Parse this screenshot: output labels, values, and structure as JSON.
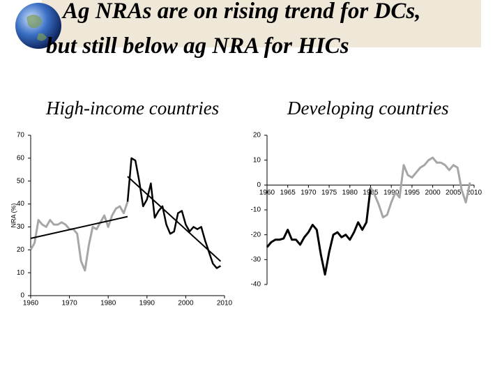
{
  "title_lines": [
    "Ag NRAs are on rising trend for DCs,",
    "but still below ag NRA for HICs"
  ],
  "chart_data": [
    {
      "type": "line",
      "title": "High-income countries",
      "ylabel": "NRA (%)",
      "xlim": [
        1960,
        2010
      ],
      "xticks": [
        1960,
        1970,
        1980,
        1990,
        2000,
        2010
      ],
      "ylim": [
        0,
        70
      ],
      "yticks": [
        0,
        10,
        20,
        30,
        40,
        50,
        60,
        70
      ],
      "x_axis_position": "bottom",
      "series": [
        {
          "color": "#a6a6a6",
          "width": 3,
          "x": [
            1960,
            1961,
            1962,
            1963,
            1964,
            1965,
            1966,
            1967,
            1968,
            1969,
            1970,
            1971,
            1972,
            1973,
            1974,
            1975,
            1976,
            1977,
            1978,
            1979,
            1980,
            1981,
            1982,
            1983,
            1984,
            1985
          ],
          "values": [
            20,
            23,
            33,
            31,
            30,
            33,
            31,
            31,
            32,
            31,
            29,
            29,
            27,
            15,
            11,
            22,
            30,
            29,
            32,
            35,
            30,
            35,
            38,
            39,
            36,
            41
          ]
        },
        {
          "color": "#000000",
          "width": 2.5,
          "x": [
            1985,
            1986,
            1987,
            1988,
            1989,
            1990,
            1991,
            1992,
            1993,
            1994,
            1995,
            1996,
            1997,
            1998,
            1999,
            2000,
            2001,
            2002,
            2003,
            2004,
            2005,
            2006,
            2007,
            2008,
            2009
          ],
          "values": [
            41,
            60,
            59,
            50,
            39,
            42,
            49,
            34,
            37,
            39,
            31,
            27,
            28,
            36,
            37,
            31,
            28,
            30,
            29,
            30,
            24,
            19,
            14,
            12,
            13
          ]
        },
        {
          "color": "#000000",
          "width": 2,
          "x": [
            1960,
            1985
          ],
          "values": [
            25,
            34.5
          ]
        },
        {
          "color": "#000000",
          "width": 2,
          "x": [
            1985,
            2009
          ],
          "values": [
            52,
            15
          ]
        }
      ]
    },
    {
      "type": "line",
      "title": "Developing countries",
      "xlim": [
        1960,
        2010
      ],
      "xticks": [
        1960,
        1965,
        1970,
        1975,
        1980,
        1985,
        1990,
        1995,
        2000,
        2005,
        2010
      ],
      "ylim": [
        -40,
        20
      ],
      "yticks": [
        -40,
        -30,
        -20,
        -10,
        0,
        10,
        20
      ],
      "x_axis_position": "zero",
      "series": [
        {
          "color": "#000000",
          "width": 3,
          "x": [
            1960,
            1961,
            1962,
            1963,
            1964,
            1965,
            1966,
            1967,
            1968,
            1969,
            1970,
            1971,
            1972,
            1973,
            1974,
            1975,
            1976,
            1977,
            1978,
            1979,
            1980,
            1981,
            1982,
            1983,
            1984,
            1985
          ],
          "values": [
            -25,
            -23,
            -22,
            -22,
            -21.5,
            -18,
            -22,
            -22,
            -24,
            -21,
            -19,
            -16,
            -18,
            -28,
            -36,
            -27,
            -20,
            -19,
            -21,
            -20,
            -22,
            -19,
            -15,
            -18,
            -15,
            -1
          ]
        },
        {
          "color": "#a6a6a6",
          "width": 3,
          "x": [
            1985,
            1986,
            1987,
            1988,
            1989,
            1990,
            1991,
            1992,
            1993,
            1994,
            1995,
            1996,
            1997,
            1998,
            1999,
            2000,
            2001,
            2002,
            2003,
            2004,
            2005,
            2006,
            2007,
            2008,
            2009
          ],
          "values": [
            -1,
            -4,
            -8,
            -13,
            -12,
            -7,
            -3,
            -5,
            8,
            4,
            3,
            5,
            7,
            8,
            10,
            11,
            9,
            9,
            8,
            6,
            8,
            7,
            -2,
            -7,
            1
          ]
        }
      ]
    }
  ]
}
